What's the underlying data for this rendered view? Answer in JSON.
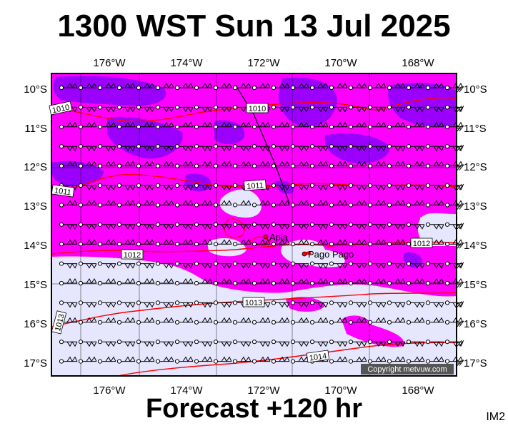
{
  "title": "1300 WST Sun 13 Jul 2025",
  "forecast_label": "Forecast +120 hr",
  "image_code": "IM2",
  "copyright": "Copyright metvuw.com",
  "axes": {
    "lon_labels": [
      "176°W",
      "174°W",
      "172°W",
      "170°W",
      "168°W"
    ],
    "lat_labels": [
      "10°S",
      "11°S",
      "12°S",
      "13°S",
      "14°S",
      "15°S",
      "16°S",
      "17°S"
    ]
  },
  "places": [
    {
      "name": "Apia"
    },
    {
      "name": "Pago Pago"
    }
  ],
  "isobar_labels": [
    "1010",
    "1010",
    "1011",
    "1011",
    "1012",
    "1012",
    "1013",
    "1013",
    "1014"
  ],
  "colors": {
    "heavy": "#9b00ff",
    "moderate": "#ff00ff",
    "light": "#e6e6ff",
    "isobar": "#ff0000"
  }
}
